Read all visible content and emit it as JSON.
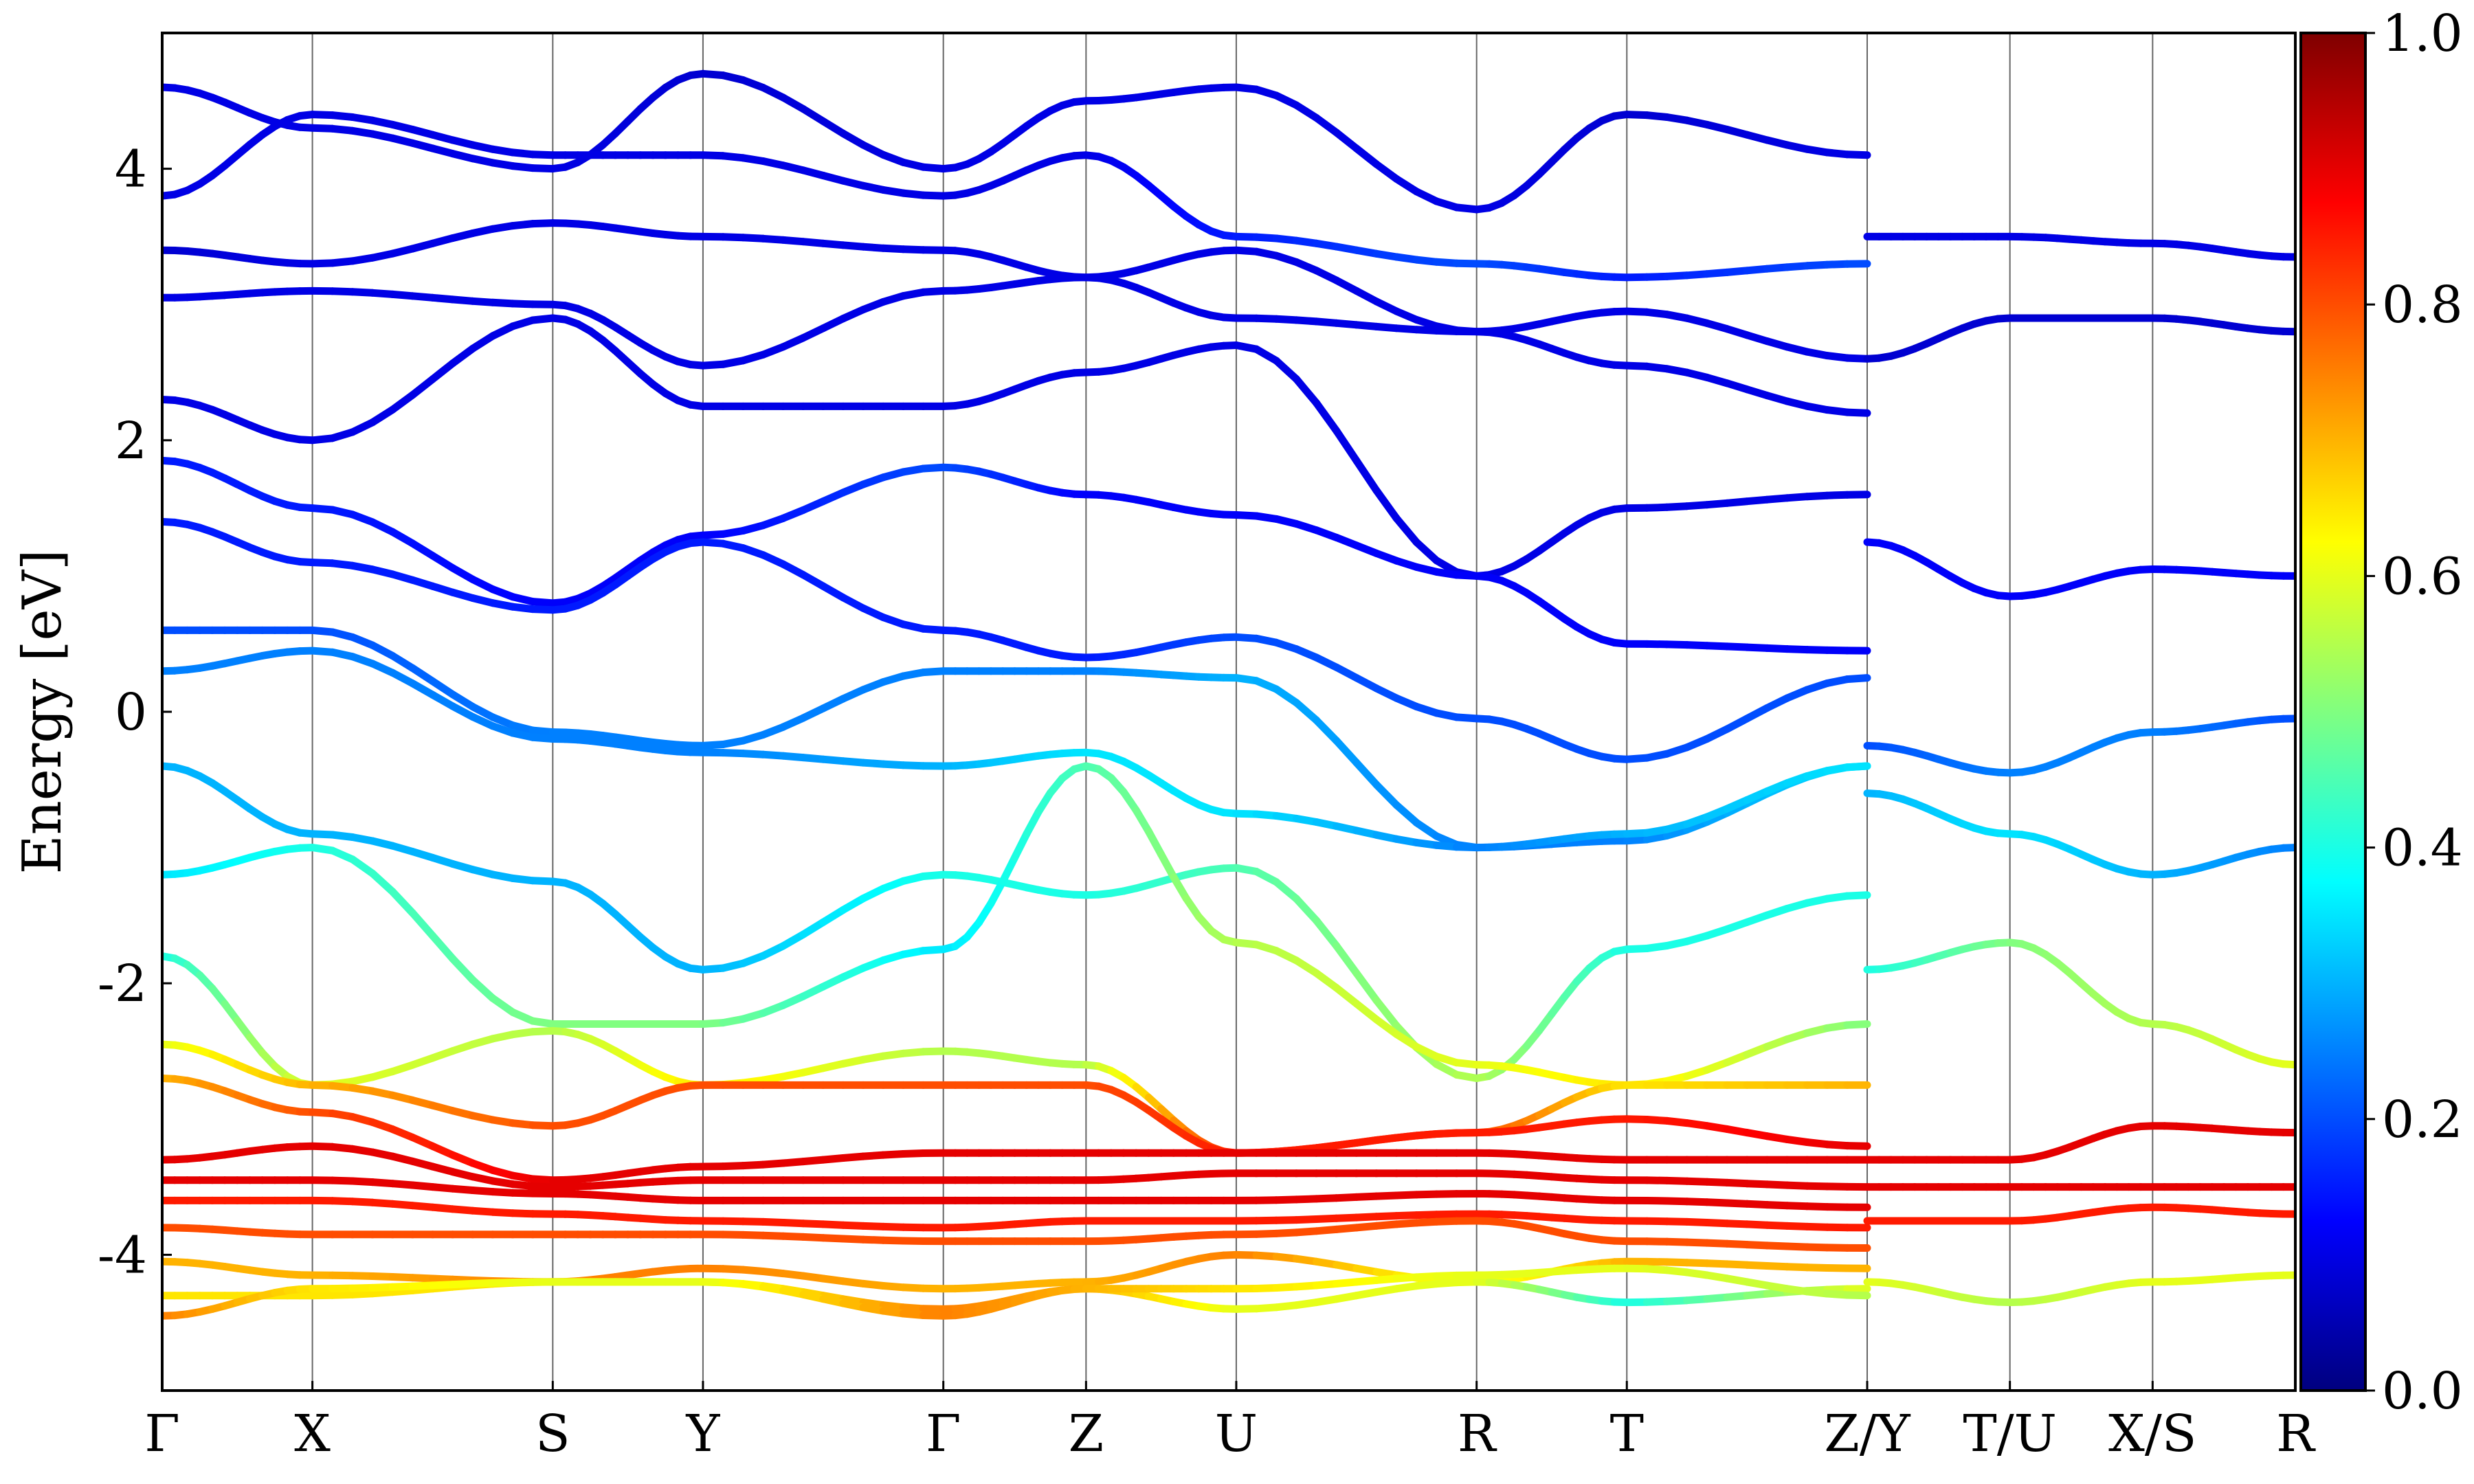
{
  "chart_data": {
    "type": "line",
    "title": "",
    "xlabel": "",
    "ylabel": "Energy [eV]",
    "ylim": [
      -5,
      5
    ],
    "yticks": [
      "4",
      "2",
      "0",
      "-2",
      "-4"
    ],
    "ytick_values": [
      4,
      2,
      0,
      -2,
      -4
    ],
    "xlim": [
      0,
      14.2
    ],
    "kpoint_labels": [
      "Γ",
      "X",
      "S",
      "Y",
      "Γ",
      "Z",
      "U",
      "R",
      "T",
      "Z/Y",
      "T/U",
      "X/S",
      "R"
    ],
    "kpoint_positions": [
      0,
      1.0,
      2.6,
      3.6,
      5.2,
      6.15,
      7.15,
      8.75,
      9.75,
      11.35,
      12.3,
      13.25,
      14.2
    ],
    "grid": "vertical lines at k-points",
    "colorbar": {
      "label": "",
      "range": [
        0.0,
        1.0
      ],
      "ticks": [
        "0.0",
        "0.2",
        "0.4",
        "0.6",
        "0.8",
        "1.0"
      ],
      "tick_values": [
        0,
        0.2,
        0.4,
        0.6,
        0.8,
        1.0
      ],
      "colormap": "jet",
      "position": "right"
    },
    "colormap_stops": [
      "#00007f",
      "#0000ff",
      "#0080ff",
      "#00ffff",
      "#80ff80",
      "#ffff00",
      "#ff8000",
      "#ff0000",
      "#7f0000"
    ],
    "series": [
      {
        "x": [
          0,
          1.0,
          2.6,
          3.6,
          5.2,
          6.15,
          7.15,
          8.75,
          9.75,
          11.35
        ],
        "y": [
          4.6,
          4.3,
          4.0,
          4.7,
          4.0,
          4.5,
          4.6,
          3.7,
          4.4,
          4.1
        ],
        "w": [
          0.1,
          0.1,
          0.1,
          0.08,
          0.1,
          0.1,
          0.1,
          0.1,
          0.08,
          0.1
        ]
      },
      {
        "x": [
          0,
          1.0,
          2.6,
          3.6,
          5.2,
          6.15,
          7.15,
          8.75,
          9.75,
          11.35
        ],
        "y": [
          3.8,
          4.4,
          4.1,
          4.1,
          3.8,
          4.1,
          3.5,
          3.3,
          3.2,
          3.3
        ],
        "w": [
          0.1,
          0.1,
          0.1,
          0.1,
          0.1,
          0.1,
          0.15,
          0.2,
          0.15,
          0.2
        ]
      },
      {
        "x": [
          0,
          1.0,
          2.6,
          3.6,
          5.2,
          6.15,
          7.15,
          8.75,
          9.75,
          11.35
        ],
        "y": [
          3.4,
          3.3,
          3.6,
          3.5,
          3.4,
          3.2,
          3.4,
          2.8,
          2.95,
          2.6
        ],
        "w": [
          0.08,
          0.1,
          0.1,
          0.1,
          0.1,
          0.1,
          0.1,
          0.1,
          0.1,
          0.1
        ]
      },
      {
        "x": [
          0,
          1.0,
          2.6,
          3.6,
          5.2,
          6.15,
          7.15,
          8.75,
          9.75,
          11.35
        ],
        "y": [
          3.05,
          3.1,
          3.0,
          2.55,
          3.1,
          3.2,
          2.9,
          2.8,
          2.55,
          2.2
        ],
        "w": [
          0.1,
          0.1,
          0.1,
          0.1,
          0.1,
          0.1,
          0.1,
          0.1,
          0.1,
          0.1
        ]
      },
      {
        "x": [
          0,
          1.0,
          2.6,
          3.6,
          5.2,
          6.15,
          7.15,
          8.75,
          9.75,
          11.35
        ],
        "y": [
          2.3,
          2.0,
          2.9,
          2.25,
          2.25,
          2.5,
          2.7,
          1.0,
          1.5,
          1.6
        ],
        "w": [
          0.1,
          0.1,
          0.1,
          0.1,
          0.1,
          0.1,
          0.1,
          0.1,
          0.1,
          0.1
        ]
      },
      {
        "x": [
          0,
          1.0,
          2.6,
          3.6,
          5.2,
          6.15,
          7.15,
          8.75,
          9.75,
          11.35
        ],
        "y": [
          1.85,
          1.5,
          0.8,
          1.3,
          1.8,
          1.6,
          1.45,
          1.0,
          0.5,
          0.45
        ],
        "w": [
          0.15,
          0.15,
          0.12,
          0.12,
          0.2,
          0.12,
          0.12,
          0.12,
          0.12,
          0.12
        ]
      },
      {
        "x": [
          0,
          1.0,
          2.6,
          3.6,
          5.2,
          6.15,
          7.15,
          8.75,
          9.75,
          11.35
        ],
        "y": [
          1.4,
          1.1,
          0.75,
          1.25,
          0.6,
          0.4,
          0.55,
          -0.05,
          -0.35,
          0.25
        ],
        "w": [
          0.15,
          0.15,
          0.15,
          0.15,
          0.15,
          0.15,
          0.2,
          0.2,
          0.2,
          0.2
        ]
      },
      {
        "x": [
          0,
          1.0,
          2.6,
          3.6,
          5.2,
          6.15,
          7.15,
          8.75,
          9.75,
          11.35
        ],
        "y": [
          0.6,
          0.6,
          -0.15,
          -0.25,
          0.3,
          0.3,
          0.25,
          -1.0,
          -0.95,
          -0.4
        ],
        "w": [
          0.2,
          0.2,
          0.25,
          0.25,
          0.25,
          0.25,
          0.3,
          0.25,
          0.25,
          0.35
        ]
      },
      {
        "x": [
          0,
          1.0,
          2.6,
          3.6,
          5.2,
          6.15,
          7.15,
          8.75,
          9.75,
          11.35
        ],
        "y": [
          0.3,
          0.45,
          -0.2,
          -0.3,
          -0.4,
          -0.3,
          -0.75,
          -1.0,
          -0.9,
          -0.4
        ],
        "w": [
          0.25,
          0.25,
          0.25,
          0.25,
          0.3,
          0.35,
          0.35,
          0.25,
          0.3,
          0.35
        ]
      },
      {
        "x": [
          0,
          1.0,
          2.6,
          3.6,
          5.2,
          6.15,
          7.15,
          8.75,
          9.75,
          11.35
        ],
        "y": [
          -0.4,
          -0.9,
          -1.25,
          -1.9,
          -1.2,
          -1.35,
          -1.15,
          -2.7,
          -1.75,
          -1.35
        ],
        "w": [
          0.3,
          0.3,
          0.3,
          0.3,
          0.4,
          0.4,
          0.45,
          0.55,
          0.4,
          0.4
        ]
      },
      {
        "x": [
          0,
          1.0,
          2.6,
          3.6,
          5.2,
          6.15,
          7.15,
          8.75,
          9.75,
          11.35
        ],
        "y": [
          -1.2,
          -1.0,
          -2.3,
          -2.3,
          -1.75,
          -0.4,
          -1.7,
          -2.6,
          -2.75,
          -2.3
        ],
        "w": [
          0.35,
          0.4,
          0.5,
          0.5,
          0.35,
          0.45,
          0.55,
          0.6,
          0.65,
          0.5
        ]
      },
      {
        "x": [
          0,
          1.0,
          2.6,
          3.6,
          5.2,
          6.15,
          7.15,
          8.75,
          9.75,
          11.35
        ],
        "y": [
          -1.8,
          -2.75,
          -2.35,
          -2.75,
          -2.5,
          -2.6,
          -3.25,
          -3.1,
          -2.75,
          -2.75
        ],
        "w": [
          0.4,
          0.6,
          0.55,
          0.65,
          0.55,
          0.55,
          0.85,
          0.8,
          0.65,
          0.7
        ]
      },
      {
        "x": [
          0,
          1.0,
          2.6,
          3.6,
          5.2,
          6.15,
          7.15,
          8.75,
          9.75,
          11.35
        ],
        "y": [
          -2.45,
          -2.75,
          -3.05,
          -2.75,
          -2.75,
          -2.75,
          -3.25,
          -3.1,
          -3.0,
          -3.2
        ],
        "w": [
          0.6,
          0.7,
          0.8,
          0.8,
          0.8,
          0.8,
          0.85,
          0.85,
          0.85,
          0.9
        ]
      },
      {
        "x": [
          0,
          1.0,
          2.6,
          3.6,
          5.2,
          6.15,
          7.15,
          8.75,
          9.75,
          11.35
        ],
        "y": [
          -2.7,
          -2.95,
          -3.45,
          -3.35,
          -3.25,
          -3.25,
          -3.25,
          -3.25,
          -3.3,
          -3.3
        ],
        "w": [
          0.7,
          0.8,
          0.9,
          0.9,
          0.9,
          0.9,
          0.9,
          0.9,
          0.9,
          0.9
        ]
      },
      {
        "x": [
          0,
          1.0,
          2.6,
          3.6,
          5.2,
          6.15,
          7.15,
          8.75,
          9.75,
          11.35
        ],
        "y": [
          -3.3,
          -3.2,
          -3.5,
          -3.45,
          -3.45,
          -3.45,
          -3.4,
          -3.4,
          -3.45,
          -3.5
        ],
        "w": [
          0.9,
          0.9,
          0.9,
          0.9,
          0.9,
          0.9,
          0.9,
          0.9,
          0.9,
          0.9
        ]
      },
      {
        "x": [
          0,
          1.0,
          2.6,
          3.6,
          5.2,
          6.15,
          7.15,
          8.75,
          9.75,
          11.35
        ],
        "y": [
          -3.45,
          -3.45,
          -3.55,
          -3.6,
          -3.6,
          -3.6,
          -3.6,
          -3.55,
          -3.6,
          -3.65
        ],
        "w": [
          0.9,
          0.9,
          0.9,
          0.9,
          0.9,
          0.9,
          0.9,
          0.9,
          0.9,
          0.9
        ]
      },
      {
        "x": [
          0,
          1.0,
          2.6,
          3.6,
          5.2,
          6.15,
          7.15,
          8.75,
          9.75,
          11.35
        ],
        "y": [
          -3.6,
          -3.6,
          -3.7,
          -3.75,
          -3.8,
          -3.75,
          -3.75,
          -3.7,
          -3.75,
          -3.8
        ],
        "w": [
          0.85,
          0.85,
          0.85,
          0.85,
          0.85,
          0.85,
          0.85,
          0.85,
          0.85,
          0.85
        ]
      },
      {
        "x": [
          0,
          1.0,
          2.6,
          3.6,
          5.2,
          6.15,
          7.15,
          8.75,
          9.75,
          11.35
        ],
        "y": [
          -3.8,
          -3.85,
          -3.85,
          -3.85,
          -3.9,
          -3.9,
          -3.85,
          -3.75,
          -3.9,
          -3.95
        ],
        "w": [
          0.8,
          0.8,
          0.8,
          0.8,
          0.8,
          0.8,
          0.8,
          0.8,
          0.8,
          0.8
        ]
      },
      {
        "x": [
          0,
          1.0,
          2.6,
          3.6,
          5.2,
          6.15,
          7.15,
          8.75,
          9.75,
          11.35
        ],
        "y": [
          -4.05,
          -4.15,
          -4.2,
          -4.1,
          -4.25,
          -4.2,
          -4.0,
          -4.2,
          -4.05,
          -4.1
        ],
        "w": [
          0.7,
          0.7,
          0.75,
          0.75,
          0.7,
          0.7,
          0.75,
          0.6,
          0.7,
          0.7
        ]
      },
      {
        "x": [
          0,
          1.0,
          2.6,
          3.6,
          5.2,
          6.15,
          7.15,
          8.75,
          9.75,
          11.35
        ],
        "y": [
          -4.3,
          -4.3,
          -4.2,
          -4.2,
          -4.4,
          -4.25,
          -4.4,
          -4.2,
          -4.35,
          -4.25
        ],
        "w": [
          0.65,
          0.65,
          0.65,
          0.6,
          0.75,
          0.7,
          0.6,
          0.6,
          0.4,
          0.6
        ]
      },
      {
        "x": [
          0,
          1.0,
          2.6,
          3.6,
          5.2,
          6.15,
          7.15,
          8.75,
          9.75,
          11.35
        ],
        "y": [
          -4.45,
          -4.25,
          -4.2,
          -4.2,
          -4.45,
          -4.25,
          -4.25,
          -4.15,
          -4.1,
          -4.3
        ],
        "w": [
          0.75,
          0.65,
          0.6,
          0.6,
          0.75,
          0.7,
          0.65,
          0.6,
          0.6,
          0.55
        ]
      },
      {
        "x": [
          11.35,
          12.3,
          13.25,
          14.2
        ],
        "y": [
          3.5,
          3.5,
          3.45,
          3.35
        ],
        "w": [
          0.1,
          0.1,
          0.1,
          0.1
        ]
      },
      {
        "x": [
          11.35,
          12.3,
          13.25,
          14.2
        ],
        "y": [
          2.6,
          2.9,
          2.9,
          2.8
        ],
        "w": [
          0.08,
          0.08,
          0.08,
          0.08
        ]
      },
      {
        "x": [
          11.35,
          12.3,
          13.25,
          14.2
        ],
        "y": [
          1.25,
          0.85,
          1.05,
          1.0
        ],
        "w": [
          0.12,
          0.12,
          0.12,
          0.12
        ]
      },
      {
        "x": [
          11.35,
          12.3,
          13.25,
          14.2
        ],
        "y": [
          -0.25,
          -0.45,
          -0.15,
          -0.05
        ],
        "w": [
          0.2,
          0.25,
          0.25,
          0.2
        ]
      },
      {
        "x": [
          11.35,
          12.3,
          13.25,
          14.2
        ],
        "y": [
          -0.6,
          -0.9,
          -1.2,
          -1.0
        ],
        "w": [
          0.3,
          0.35,
          0.3,
          0.25
        ]
      },
      {
        "x": [
          11.35,
          12.3,
          13.25,
          14.2
        ],
        "y": [
          -1.9,
          -1.7,
          -2.3,
          -2.6
        ],
        "w": [
          0.4,
          0.5,
          0.55,
          0.6
        ]
      },
      {
        "x": [
          11.35,
          12.3,
          13.25,
          14.2
        ],
        "y": [
          -3.3,
          -3.3,
          -3.05,
          -3.1
        ],
        "w": [
          0.9,
          0.9,
          0.9,
          0.9
        ]
      },
      {
        "x": [
          11.35,
          12.3,
          13.25,
          14.2
        ],
        "y": [
          -3.5,
          -3.5,
          -3.5,
          -3.5
        ],
        "w": [
          0.9,
          0.9,
          0.9,
          0.9
        ]
      },
      {
        "x": [
          11.35,
          12.3,
          13.25,
          14.2
        ],
        "y": [
          -3.75,
          -3.75,
          -3.65,
          -3.7
        ],
        "w": [
          0.85,
          0.85,
          0.85,
          0.85
        ]
      },
      {
        "x": [
          11.35,
          12.3,
          13.25,
          14.2
        ],
        "y": [
          -4.2,
          -4.35,
          -4.2,
          -4.15
        ],
        "w": [
          0.6,
          0.55,
          0.6,
          0.6
        ]
      }
    ]
  }
}
